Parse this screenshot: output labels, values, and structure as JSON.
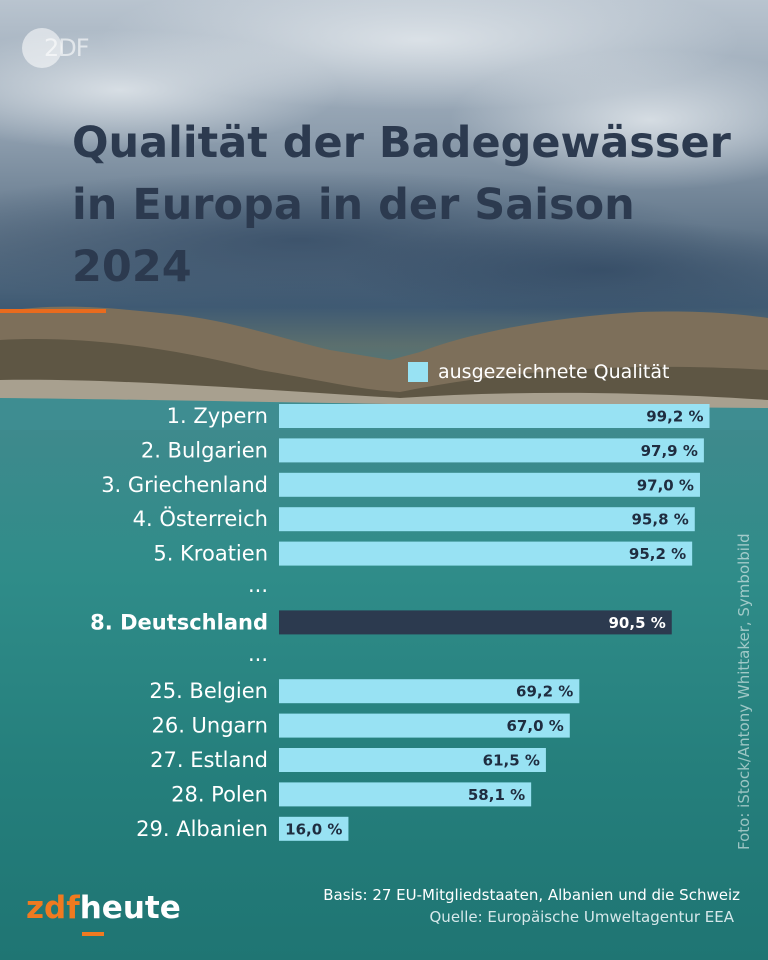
{
  "header": {
    "watermark": "2DF",
    "title": "Qualität der Badegewässer\nin Europa in der Saison\n2024"
  },
  "legend": {
    "label": "ausgezeichnete Qualität",
    "color": "#98e2f3"
  },
  "chart_data": {
    "type": "bar",
    "orientation": "horizontal",
    "title": "Qualität der Badegewässer in Europa in der Saison 2024",
    "series": [
      {
        "name": "ausgezeichnete Qualität",
        "color": "#98e2f3"
      }
    ],
    "highlight_color": "#2c3a4f",
    "xlim": [
      0,
      100
    ],
    "rows": [
      {
        "label": "1. Zypern",
        "value": 99.2,
        "value_label": "99,2 %"
      },
      {
        "label": "2. Bulgarien",
        "value": 97.9,
        "value_label": "97,9 %"
      },
      {
        "label": "3. Griechenland",
        "value": 97.0,
        "value_label": "97,0 %"
      },
      {
        "label": "4. Österreich",
        "value": 95.8,
        "value_label": "95,8 %"
      },
      {
        "label": "5. Kroatien",
        "value": 95.2,
        "value_label": "95,2 %"
      },
      {
        "ellipsis": "..."
      },
      {
        "label": "8. Deutschland",
        "value": 90.5,
        "value_label": "90,5 %",
        "highlight": true
      },
      {
        "ellipsis": "..."
      },
      {
        "label": "25. Belgien",
        "value": 69.2,
        "value_label": "69,2 %"
      },
      {
        "label": "26. Ungarn",
        "value": 67.0,
        "value_label": "67,0 %"
      },
      {
        "label": "27. Estland",
        "value": 61.5,
        "value_label": "61,5 %"
      },
      {
        "label": "28. Polen",
        "value": 58.1,
        "value_label": "58,1 %"
      },
      {
        "label": "29. Albanien",
        "value": 16.0,
        "value_label": "16,0 %"
      }
    ]
  },
  "credit": "Foto: iStock/Antony Whittaker, Symbolbild",
  "footer": {
    "brand_zdf": "zdf",
    "brand_heute": "heute",
    "basis": "Basis: 27 EU-Mitgliedstaaten, Albanien und die Schweiz",
    "source": "Quelle: Europäische Umweltagentur EEA"
  }
}
